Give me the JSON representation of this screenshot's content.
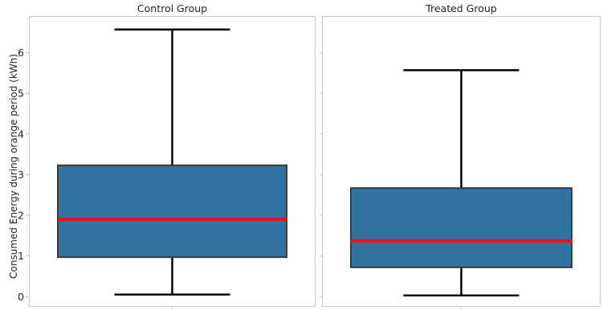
{
  "chart_data": {
    "type": "box",
    "ylabel": "Consumed Energy during orange period (kWh)",
    "ylim": [
      -0.25,
      6.9
    ],
    "yticks": [
      0,
      1,
      2,
      3,
      4,
      5,
      6
    ],
    "shared_y": true,
    "grid": false,
    "colors": {
      "box_fill": "#3274a1",
      "box_edge": "#3a3a3a",
      "median": "#e8141c",
      "whisker": "#000000",
      "frame": "#c8c8c8"
    },
    "panels": [
      {
        "title": "Control Group",
        "whisker_low": 0.05,
        "q1": 0.97,
        "median": 1.9,
        "q3": 3.23,
        "whisker_high": 6.57
      },
      {
        "title": "Treated Group",
        "whisker_low": 0.03,
        "q1": 0.72,
        "median": 1.37,
        "q3": 2.67,
        "whisker_high": 5.57
      }
    ]
  }
}
